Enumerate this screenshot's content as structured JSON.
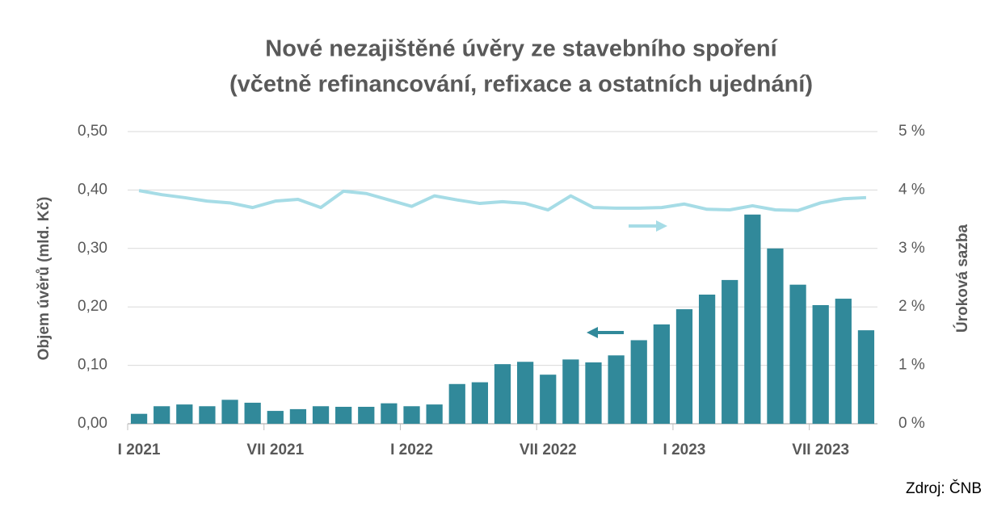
{
  "chart_data": {
    "type": "bar_line",
    "title": [
      "Nové nezajištěné úvěry ze stavebního spoření",
      "(včetně refinancování, refixace a ostatních ujednání)"
    ],
    "y_label": "Objem úvěrů (mld. Kč)",
    "y2_label": "Úroková sazba",
    "source": "Zdroj: ČNB",
    "categories": [
      "I 2021",
      null,
      null,
      null,
      null,
      null,
      "VII 2021",
      null,
      null,
      null,
      null,
      null,
      "I 2022",
      null,
      null,
      null,
      null,
      null,
      "VII 2022",
      null,
      null,
      null,
      null,
      null,
      "I 2023",
      null,
      null,
      null,
      null,
      null,
      "VII 2023",
      null,
      null
    ],
    "series": [
      {
        "type": "bar",
        "color": "#31899a",
        "values": [
          0.017,
          0.03,
          0.033,
          0.03,
          0.041,
          0.036,
          0.022,
          0.025,
          0.03,
          0.029,
          0.029,
          0.035,
          0.03,
          0.033,
          0.068,
          0.071,
          0.102,
          0.106,
          0.084,
          0.11,
          0.105,
          0.117,
          0.143,
          0.17,
          0.196,
          0.221,
          0.246,
          0.358,
          0.3,
          0.238,
          0.203,
          0.214,
          0.16
        ]
      },
      {
        "type": "line",
        "axis": "y2",
        "color": "#a6dce6",
        "values": [
          3.99,
          3.92,
          3.87,
          3.81,
          3.78,
          3.7,
          3.81,
          3.84,
          3.7,
          3.98,
          3.94,
          3.83,
          3.72,
          3.9,
          3.83,
          3.77,
          3.8,
          3.77,
          3.66,
          3.9,
          3.7,
          3.69,
          3.69,
          3.7,
          3.76,
          3.67,
          3.66,
          3.73,
          3.66,
          3.65,
          3.78,
          3.85,
          3.87
        ]
      }
    ],
    "ylim": [
      0,
      0.5
    ],
    "yticks": [
      {
        "value": 0,
        "label": "0,00"
      },
      {
        "value": 0.1,
        "label": "0,10"
      },
      {
        "value": 0.2,
        "label": "0,20"
      },
      {
        "value": 0.3,
        "label": "0,30"
      },
      {
        "value": 0.4,
        "label": "0,40"
      },
      {
        "value": 0.5,
        "label": "0,50"
      }
    ],
    "y2lim": [
      0,
      5
    ],
    "y2ticks": [
      {
        "value": 0,
        "label": "0 %"
      },
      {
        "value": 1,
        "label": "1 %"
      },
      {
        "value": 2,
        "label": "2 %"
      },
      {
        "value": 3,
        "label": "3 %"
      },
      {
        "value": 4,
        "label": "4 %"
      },
      {
        "value": 5,
        "label": "5 %"
      }
    ],
    "grid": true
  }
}
